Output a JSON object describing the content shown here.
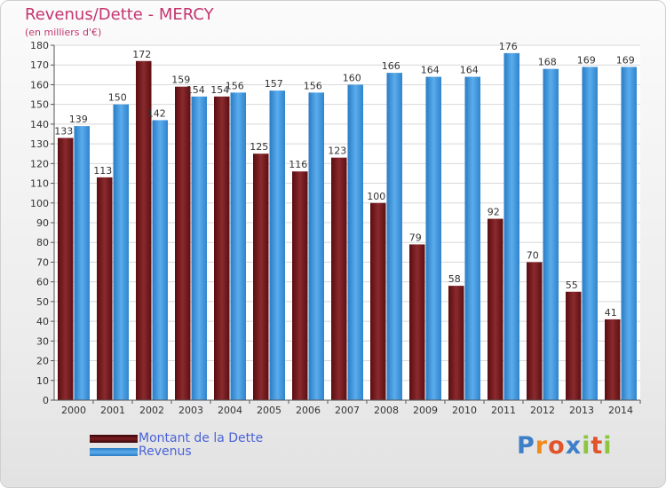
{
  "header": {
    "title": "Revenus/Dette - MERCY",
    "subtitle": "(en milliers d'€)"
  },
  "colors": {
    "dette": "#7a1e22",
    "revenus": "#3d94d8",
    "title": "#c4356f"
  },
  "legend": {
    "items": [
      {
        "label": "Montant de la Dette",
        "color": "#6b1418"
      },
      {
        "label": "Revenus",
        "color": "#3d94d8"
      }
    ]
  },
  "logo": {
    "text": "Proxiti"
  },
  "chart_data": {
    "type": "bar",
    "title": "Revenus/Dette - MERCY",
    "subtitle": "(en milliers d'€)",
    "categories": [
      "2000",
      "2001",
      "2002",
      "2003",
      "2004",
      "2005",
      "2006",
      "2007",
      "2008",
      "2009",
      "2010",
      "2011",
      "2012",
      "2013",
      "2014"
    ],
    "series": [
      {
        "name": "Montant de la Dette",
        "values": [
          133,
          113,
          172,
          159,
          154,
          125,
          116,
          123,
          100,
          79,
          58,
          92,
          70,
          55,
          41
        ],
        "labels": [
          "133",
          "113",
          "172",
          "159",
          "154",
          "125",
          "116",
          "123",
          "100",
          "79",
          "58",
          "92",
          "70",
          "55",
          "41"
        ]
      },
      {
        "name": "Revenus",
        "values": [
          139,
          150,
          142,
          154,
          156,
          157,
          156,
          160,
          166,
          164,
          164,
          176,
          168,
          169,
          169
        ],
        "labels": [
          "139",
          "150",
          "142",
          "154",
          "156",
          "157",
          "156",
          "160",
          "166",
          "164",
          "164",
          "176",
          "168",
          "169",
          "169"
        ]
      }
    ],
    "ylim": [
      0,
      180
    ],
    "yticks": [
      0,
      10,
      20,
      30,
      40,
      50,
      60,
      70,
      80,
      90,
      100,
      110,
      120,
      130,
      140,
      150,
      160,
      170,
      180
    ],
    "grid": true,
    "legend_position": "bottom-left"
  }
}
